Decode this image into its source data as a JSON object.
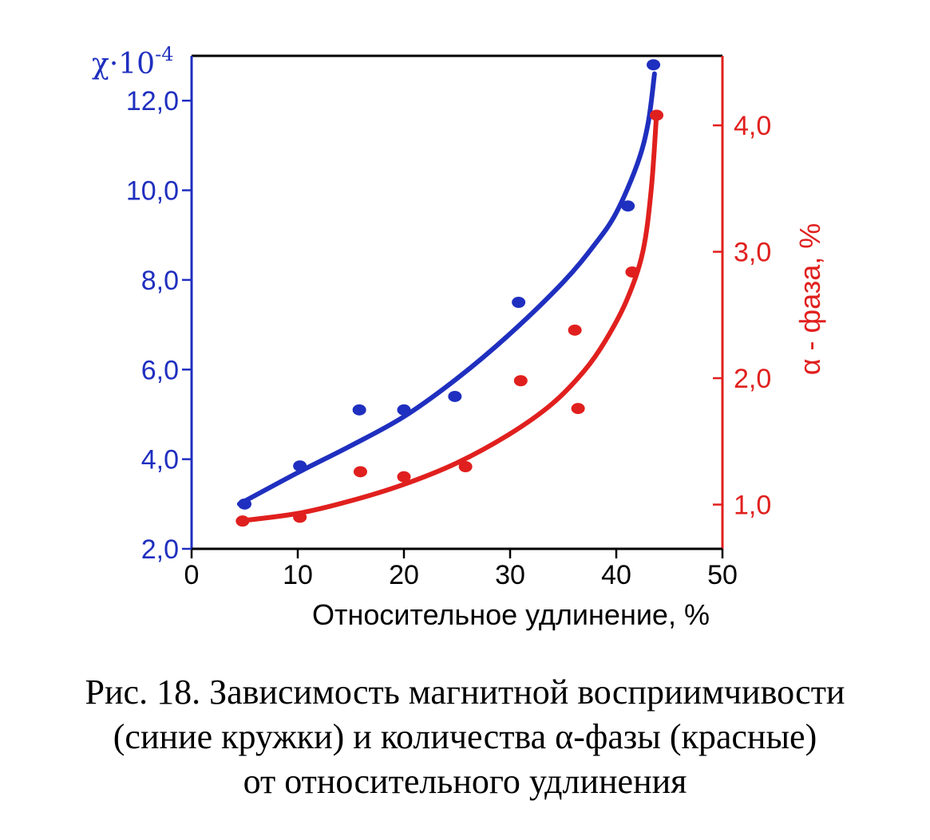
{
  "chart_data": {
    "type": "scatter",
    "xlabel": "Относительное удлинение, %",
    "ylabel_left": "χ·10",
    "ylabel_left_exp": "-4",
    "ylabel_right": "α - фаза, %",
    "xlim": [
      0,
      50
    ],
    "ylim_left": [
      2.0,
      13.0
    ],
    "ylim_right": [
      0.65,
      4.55
    ],
    "x_ticks": [
      "0",
      "10",
      "20",
      "30",
      "40",
      "50"
    ],
    "x_tick_values": [
      0,
      10,
      20,
      30,
      40,
      50
    ],
    "y_left_ticks": [
      "2,0",
      "4,0",
      "6,0",
      "8,0",
      "10,0",
      "12,0"
    ],
    "y_left_tick_values": [
      2,
      4,
      6,
      8,
      10,
      12
    ],
    "y_right_ticks": [
      "1,0",
      "2,0",
      "3,0",
      "4,0"
    ],
    "y_right_tick_values": [
      1,
      2,
      3,
      4
    ],
    "colors": {
      "blue": "#1f2fbf",
      "red": "#e0201e"
    },
    "series": [
      {
        "axis": "left",
        "color": "#1f2fbf",
        "points": [
          [
            5,
            3.0
          ],
          [
            10.2,
            3.85
          ],
          [
            15.8,
            5.1
          ],
          [
            20,
            5.1
          ],
          [
            24.8,
            5.4
          ],
          [
            30.8,
            7.5
          ],
          [
            41.1,
            9.65
          ],
          [
            43.5,
            12.8
          ]
        ],
        "curve": [
          [
            4.5,
            3.0
          ],
          [
            10,
            3.7
          ],
          [
            15,
            4.3
          ],
          [
            20,
            4.95
          ],
          [
            25,
            5.8
          ],
          [
            30,
            6.8
          ],
          [
            35,
            7.95
          ],
          [
            38,
            8.8
          ],
          [
            40,
            9.5
          ],
          [
            42,
            10.6
          ],
          [
            43,
            11.5
          ],
          [
            43.6,
            12.6
          ]
        ]
      },
      {
        "axis": "right",
        "color": "#e0201e",
        "points": [
          [
            4.8,
            0.87
          ],
          [
            10.2,
            0.9
          ],
          [
            15.9,
            1.26
          ],
          [
            20,
            1.22
          ],
          [
            25.8,
            1.3
          ],
          [
            31,
            1.98
          ],
          [
            36.1,
            2.38
          ],
          [
            36.4,
            1.76
          ],
          [
            41.5,
            2.84
          ],
          [
            43.8,
            4.08
          ]
        ],
        "curve": [
          [
            4.5,
            0.87
          ],
          [
            10,
            0.93
          ],
          [
            15,
            1.03
          ],
          [
            20,
            1.16
          ],
          [
            25,
            1.33
          ],
          [
            30,
            1.56
          ],
          [
            34,
            1.8
          ],
          [
            37,
            2.06
          ],
          [
            39,
            2.3
          ],
          [
            41,
            2.62
          ],
          [
            42.5,
            3.0
          ],
          [
            43.3,
            3.5
          ],
          [
            43.8,
            4.1
          ]
        ]
      }
    ]
  },
  "caption": {
    "line1": "Рис. 18. Зависимость магнитной восприимчивости",
    "line2": "(синие кружки) и количества α-фазы (красные)",
    "line3": "от относительного удлинения"
  }
}
